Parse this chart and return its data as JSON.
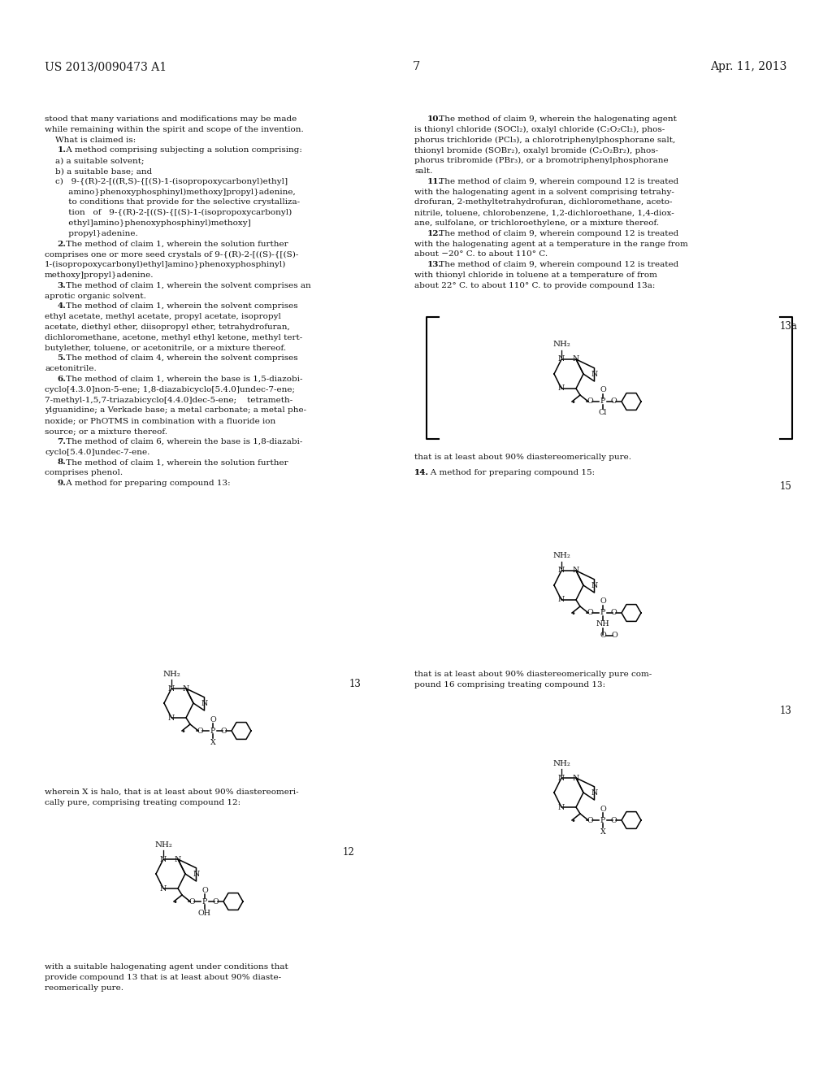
{
  "background_color": "#ffffff",
  "header_left": "US 2013/0090473 A1",
  "header_right": "Apr. 11, 2013",
  "page_number": "7",
  "left_column_text": [
    "stood that many variations and modifications may be made",
    "while remaining within the spirit and scope of the invention.",
    "    What is claimed is:",
    "    1. A method comprising subjecting a solution comprising:",
    "    a) a suitable solvent;",
    "    b) a suitable base; and",
    "    c)   9-{(R)-2-[((R,S)-{[(S)-1-(isopropoxycarbonyl)ethyl]",
    "         amino}phenoxyphosphinyl)methoxy]propyl}adenine,",
    "         to conditions that provide for the selective crystalliza-",
    "         tion   of   9-{(R)-2-[((S)-{[(S)-1-(isopropoxycarbonyl)",
    "         ethyl]amino}phenoxyphosphinyl)methoxy]",
    "         propyl}adenine.",
    "    2. The method of claim 1, wherein the solution further",
    "comprises one or more seed crystals of 9-{(R)-2-[((S)-{[(S)-",
    "1-(isopropoxycarbonyl)ethyl]amino}phenoxyphosphinyl)",
    "methoxy]propyl}adenine.",
    "    3. The method of claim 1, wherein the solvent comprises an",
    "aprotic organic solvent.",
    "    4. The method of claim 1, wherein the solvent comprises",
    "ethyl acetate, methyl acetate, propyl acetate, isopropyl",
    "acetate, diethyl ether, diisopropyl ether, tetrahydrofuran,",
    "dichloromethane, acetone, methyl ethyl ketone, methyl tert-",
    "butylether, toluene, or acetonitrile, or a mixture thereof.",
    "    5. The method of claim 4, wherein the solvent comprises",
    "acetonitrile.",
    "    6. The method of claim 1, wherein the base is 1,5-diazobi-",
    "cyclo[4.3.0]non-5-ene; 1,8-diazabicyclo[5.4.0]undec-7-ene;",
    "7-methyl-1,5,7-triazabicyclo[4.4.0]dec-5-ene;    tetrameth-",
    "ylguanidine; a Verkade base; a metal carbonate; a metal phe-",
    "noxide; or PhOTMS in combination with a fluoride ion",
    "source; or a mixture thereof.",
    "    7. The method of claim 6, wherein the base is 1,8-diazabi-",
    "cyclo[5.4.0]undec-7-ene.",
    "    8. The method of claim 1, wherein the solution further",
    "comprises phenol.",
    "    9. A method for preparing compound 13:"
  ],
  "right_column_text": [
    "    10. The method of claim 9, wherein the halogenating agent",
    "is thionyl chloride (SOCl₂), oxalyl chloride (C₂O₂Cl₂), phos-",
    "phorus trichloride (PCl₃), a chlorotriphenylphosphorane salt,",
    "thionyl bromide (SOBr₂), oxalyl bromide (C₂O₂Br₂), phos-",
    "phorus tribromide (PBr₃), or a bromotriphenylphosphorane",
    "salt.",
    "    11. The method of claim 9, wherein compound 12 is treated",
    "with the halogenating agent in a solvent comprising tetrahy-",
    "drofuran, 2-methyltetrahydrofuran, dichloromethane, aceto-",
    "nitrile, toluene, chlorobenzene, 1,2-dichloroethane, 1,4-diox-",
    "ane, sulfolane, or trichloroethylene, or a mixture thereof.",
    "    12. The method of claim 9, wherein compound 12 is treated",
    "with the halogenating agent at a temperature in the range from",
    "about −20° C. to about 110° C.",
    "    13. The method of claim 9, wherein compound 12 is treated",
    "with thionyl chloride in toluene at a temperature of from",
    "about 22° C. to about 110° C. to provide compound 13a:"
  ],
  "caption_claim9_below": "wherein X is halo, that is at least about 90% diastereomeri-",
  "caption_claim9_below2": "cally pure, comprising treating compound 12:",
  "caption_compound12": "with a suitable halogenating agent under conditions that",
  "caption_compound12_2": "provide compound 13 that is at least about 90% diaste-",
  "caption_compound12_3": "reomerically pure.",
  "caption_13a": "that is at least about 90% diastereomerically pure.",
  "caption_14": "14. A method for preparing compound 15:",
  "caption_15": "that is at least about 90% diastereomerically pure com-",
  "caption_15_2": "pound 16 comprising treating compound 13:",
  "compound_labels": {
    "13_top_left": "13",
    "12_label": "12",
    "13a_label": "13a",
    "15_label": "15",
    "13_bottom_right": "13"
  }
}
